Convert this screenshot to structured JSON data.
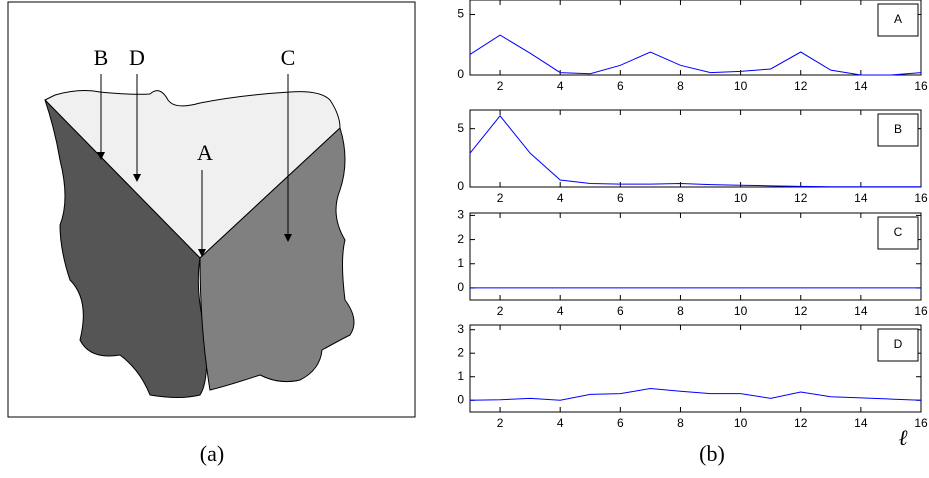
{
  "diagram": {
    "labels": [
      "B",
      "D",
      "C",
      "A"
    ]
  },
  "captions": [
    "(a)",
    "(b)"
  ],
  "x_label": "ℓ",
  "chart_data": [
    {
      "type": "line",
      "x": [
        1,
        2,
        3,
        4,
        5,
        6,
        7,
        8,
        9,
        10,
        11,
        12,
        13,
        14,
        15,
        16
      ],
      "series": [
        {
          "name": "A",
          "color": "#0000ff",
          "values": [
            1.7,
            3.3,
            1.8,
            0.2,
            0.1,
            0.8,
            1.9,
            0.8,
            0.2,
            0.3,
            0.5,
            1.9,
            0.4,
            0.0,
            0.0,
            0.2
          ]
        }
      ],
      "xlim": [
        1,
        16
      ],
      "ylim": [
        0,
        6.2
      ],
      "xticks": [
        2,
        4,
        6,
        8,
        10,
        12,
        14,
        16
      ],
      "yticks": [
        0,
        5
      ],
      "legend": "upper right"
    },
    {
      "type": "line",
      "x": [
        1,
        2,
        3,
        4,
        5,
        6,
        7,
        8,
        9,
        10,
        11,
        12,
        13,
        14,
        15,
        16
      ],
      "series": [
        {
          "name": "B",
          "color": "#0000ff",
          "values": [
            2.9,
            6.1,
            2.9,
            0.6,
            0.3,
            0.25,
            0.25,
            0.3,
            0.2,
            0.15,
            0.1,
            0.05,
            0.02,
            0.02,
            0.02,
            0.02
          ]
        }
      ],
      "xlim": [
        1,
        16
      ],
      "ylim": [
        0,
        6.6
      ],
      "xticks": [
        2,
        4,
        6,
        8,
        10,
        12,
        14,
        16
      ],
      "yticks": [
        0,
        5
      ],
      "legend": "upper right"
    },
    {
      "type": "line",
      "x": [
        1,
        2,
        3,
        4,
        5,
        6,
        7,
        8,
        9,
        10,
        11,
        12,
        13,
        14,
        15,
        16
      ],
      "series": [
        {
          "name": "C",
          "color": "#0000ff",
          "values": [
            0,
            0,
            0,
            0,
            0,
            0,
            0,
            0,
            0,
            0,
            0,
            0,
            0,
            0,
            0,
            0
          ]
        }
      ],
      "xlim": [
        1,
        16
      ],
      "ylim": [
        -0.5,
        3.1
      ],
      "xticks": [
        2,
        4,
        6,
        8,
        10,
        12,
        14,
        16
      ],
      "yticks": [
        0,
        1,
        2,
        3
      ],
      "legend": "upper right"
    },
    {
      "type": "line",
      "x": [
        1,
        2,
        3,
        4,
        5,
        6,
        7,
        8,
        9,
        10,
        11,
        12,
        13,
        14,
        15,
        16
      ],
      "series": [
        {
          "name": "D",
          "color": "#0000ff",
          "values": [
            0,
            0.02,
            0.08,
            0.0,
            0.25,
            0.28,
            0.5,
            0.38,
            0.28,
            0.28,
            0.08,
            0.35,
            0.15,
            0.1,
            0.05,
            0.0
          ]
        }
      ],
      "xlim": [
        1,
        16
      ],
      "ylim": [
        -0.5,
        3.2
      ],
      "xticks": [
        2,
        4,
        6,
        8,
        10,
        12,
        14,
        16
      ],
      "yticks": [
        0,
        1,
        2,
        3
      ],
      "legend": "upper right"
    }
  ]
}
